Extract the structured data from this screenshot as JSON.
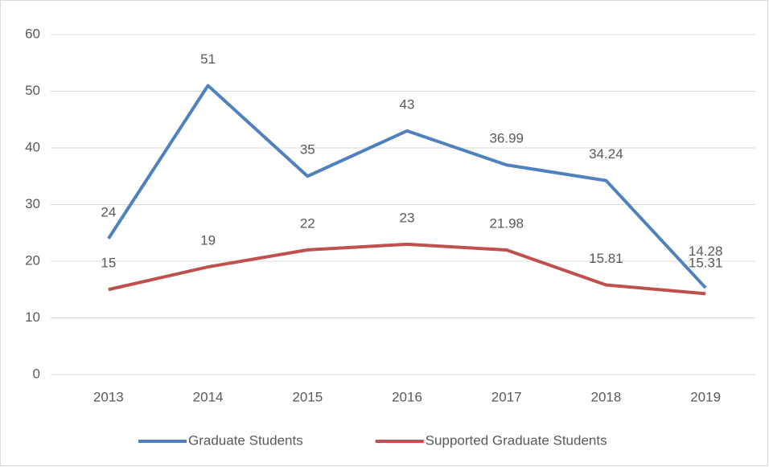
{
  "chart_data": {
    "type": "line",
    "categories": [
      "2013",
      "2014",
      "2015",
      "2016",
      "2017",
      "2018",
      "2019"
    ],
    "series": [
      {
        "name": "Graduate Students",
        "color": "#4f81bd",
        "values": [
          24,
          51,
          35,
          43,
          36.99,
          34.24,
          15.31
        ]
      },
      {
        "name": "Supported Graduate Students",
        "color": "#c0504d",
        "values": [
          15,
          19,
          22,
          23,
          21.98,
          15.81,
          14.28
        ]
      }
    ],
    "ylim": [
      0,
      60
    ],
    "yticks": [
      0,
      10,
      20,
      30,
      40,
      50,
      60
    ],
    "grid": true,
    "legend": "bottom"
  }
}
